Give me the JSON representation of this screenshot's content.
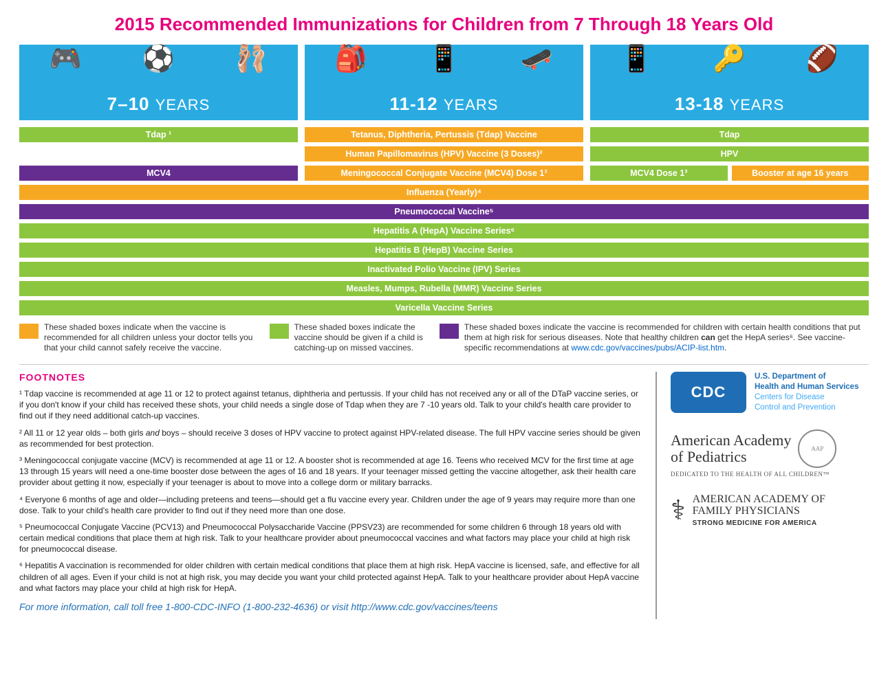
{
  "title": "2015 Recommended Immunizations for Children from 7 Through 18 Years Old",
  "colors": {
    "title": "#e6007e",
    "header_bg": "#29abe2",
    "orange": "#f7a823",
    "green": "#8cc63f",
    "purple": "#662d91",
    "footnote_heading": "#e6007e",
    "link": "#0066cc",
    "cdc_blue": "#1f6eb5"
  },
  "age_groups": [
    {
      "label_num": "7–10",
      "label_unit": "YEARS",
      "icons": [
        "🎮",
        "⚽",
        "🩰"
      ]
    },
    {
      "label_num": "11-12",
      "label_unit": "YEARS",
      "icons": [
        "🎒",
        "📱",
        "🛹"
      ]
    },
    {
      "label_num": "13-18",
      "label_unit": "YEARS",
      "icons": [
        "📱",
        "🔑",
        "🏈"
      ]
    }
  ],
  "rows": [
    {
      "cells": [
        {
          "text": "Tdap ¹",
          "color": "green"
        },
        {
          "text": "Tetanus, Diphtheria, Pertussis (Tdap) Vaccine",
          "color": "orange"
        },
        {
          "text": "Tdap",
          "color": "green"
        }
      ]
    },
    {
      "cells": [
        {
          "empty": true
        },
        {
          "text": "Human Papillomavirus (HPV) Vaccine (3 Doses)²",
          "color": "orange"
        },
        {
          "text": "HPV",
          "color": "green"
        }
      ]
    },
    {
      "cells": [
        {
          "text": "MCV4",
          "color": "purple"
        },
        {
          "text": "Meningococcal Conjugate Vaccine (MCV4) Dose 1³",
          "color": "orange"
        },
        {
          "split": [
            {
              "text": "MCV4 Dose 1³",
              "color": "green"
            },
            {
              "text": "Booster at age 16 years",
              "color": "orange"
            }
          ]
        }
      ]
    }
  ],
  "full_rows": [
    {
      "text": "Influenza (Yearly)⁴",
      "color": "orange"
    },
    {
      "text": "Pneumococcal Vaccine⁵",
      "color": "purple"
    },
    {
      "text": "Hepatitis A (HepA) Vaccine Series⁶",
      "color": "green"
    },
    {
      "text": "Hepatitis B (HepB) Vaccine Series",
      "color": "green"
    },
    {
      "text": "Inactivated Polio Vaccine (IPV) Series",
      "color": "green"
    },
    {
      "text": "Measles, Mumps, Rubella (MMR) Vaccine Series",
      "color": "green"
    },
    {
      "text": "Varicella Vaccine Series",
      "color": "green"
    }
  ],
  "legend": [
    {
      "color": "orange",
      "text": "These shaded boxes indicate when the vaccine is recommended for all children unless your doctor tells you that your child cannot safely receive the vaccine."
    },
    {
      "color": "green",
      "text": "These shaded boxes indicate the vaccine should be given if a child is catching-up on missed vaccines."
    },
    {
      "color": "purple",
      "text": "These shaded boxes indicate the vaccine is recommended for children with certain health conditions that put them at high risk for serious diseases. Note that healthy children can get the HepA series⁶. See vaccine-specific recommendations at www.cdc.gov/vaccines/pubs/ACIP-list.htm."
    }
  ],
  "footnotes_heading": "FOOTNOTES",
  "footnotes": [
    "¹ Tdap vaccine is recommended at age 11 or 12 to protect against tetanus, diphtheria and pertussis. If your child has not received any or all of the DTaP vaccine series, or if you don't know if your child has received these shots, your child needs a single dose of Tdap when they are 7 -10 years old.  Talk to your child's health care provider to find out if they need additional catch-up vaccines.",
    "² All 11 or 12 year olds – both girls and boys – should receive 3 doses of HPV vaccine to protect against HPV-related disease. The full HPV vaccine series should be given as recommended for best protection.",
    "³ Meningococcal conjugate vaccine (MCV) is recommended at age 11 or 12. A booster shot is recommended at age 16.  Teens who received MCV for the first time at age 13 through 15 years will need a one-time booster dose between the ages of 16 and 18 years.  If your teenager missed getting the vaccine altogether, ask their health care provider about getting it now, especially if your teenager is about to move into a college dorm or military barracks.",
    "⁴ Everyone 6 months of age and older—including preteens and teens—should get a flu vaccine every year.  Children under the age of 9 years may require more than one dose.  Talk to your child's health care provider to find out if they need more than one dose.",
    "⁵ Pneumococcal Conjugate Vaccine (PCV13) and Pneumococcal Polysaccharide Vaccine (PPSV23) are recommended for some children 6 through 18 years old with certain medical conditions that place them at high risk. Talk to your healthcare provider about pneumococcal vaccines and what factors may place your child at high risk for pneumococcal disease.",
    "⁶ Hepatitis A vaccination is recommended for older children with certain medical conditions that place them at high risk. HepA vaccine is licensed, safe, and effective for all children of all ages. Even if your child is not at high risk, you may decide you want your child protected against HepA. Talk to your healthcare provider about HepA vaccine and what factors may place your child at high risk for HepA."
  ],
  "more_info": "For more information, call toll free 1-800-CDC-INFO (1-800-232-4636) or visit http://www.cdc.gov/vaccines/teens",
  "logos": {
    "cdc": {
      "badge": "CDC",
      "line1": "U.S. Department of",
      "line2": "Health and Human Services",
      "line3": "Centers for Disease",
      "line4": "Control and Prevention"
    },
    "aap": {
      "name1": "American Academy",
      "name2": "of Pediatrics",
      "tag": "DEDICATED TO THE HEALTH OF ALL CHILDREN™"
    },
    "aafp": {
      "name1": "AMERICAN ACADEMY OF",
      "name2": "FAMILY PHYSICIANS",
      "tag": "STRONG MEDICINE FOR AMERICA"
    }
  }
}
